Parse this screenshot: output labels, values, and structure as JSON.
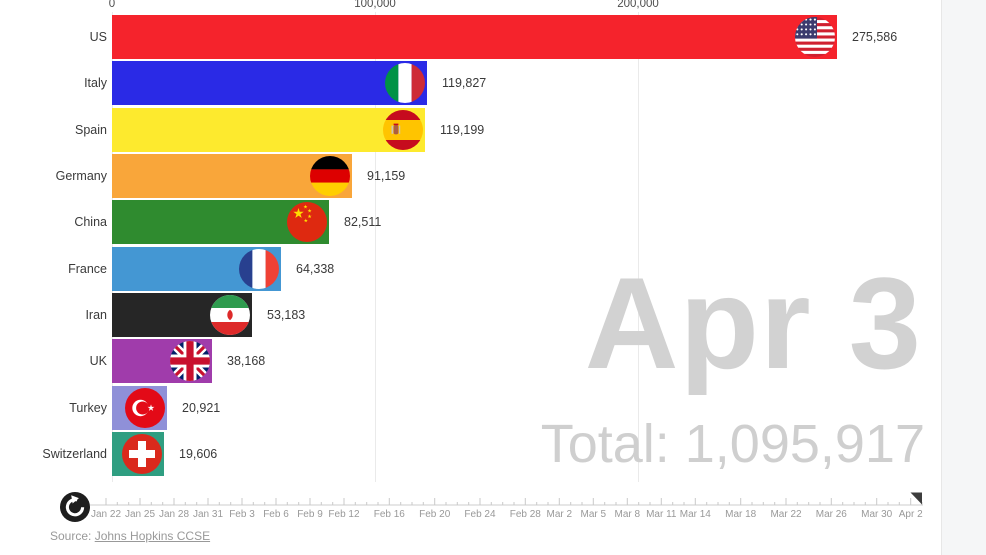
{
  "overlay": {
    "date": "Apr 3",
    "total_prefix": "Total: ",
    "total_value": "1,095,917"
  },
  "source": {
    "prefix": "Source: ",
    "link_text": "Johns Hopkins CCSE"
  },
  "controls": {
    "replay_icon": "replay-icon"
  },
  "chart_data": {
    "type": "bar",
    "orientation": "horizontal",
    "title": "",
    "date_label": "Apr 3",
    "total": 1095917,
    "grid": true,
    "xlim": [
      0,
      315000
    ],
    "x_axis_ticks": [
      {
        "label": "0",
        "value": 0
      },
      {
        "label": "100,000",
        "value": 100000
      },
      {
        "label": "200,000",
        "value": 200000
      }
    ],
    "categories": [
      "US",
      "Italy",
      "Spain",
      "Germany",
      "China",
      "France",
      "Iran",
      "UK",
      "Turkey",
      "Switzerland"
    ],
    "values": [
      275586,
      119827,
      119199,
      91159,
      82511,
      64338,
      53183,
      38168,
      20921,
      19606
    ],
    "value_labels": [
      "275,586",
      "119,827",
      "119,199",
      "91,159",
      "82,511",
      "64,338",
      "53,183",
      "38,168",
      "20,921",
      "19,606"
    ],
    "bar_colors": [
      "#f5232c",
      "#2a2ae6",
      "#fdea2e",
      "#f9a63a",
      "#2f8b2f",
      "#4497d3",
      "#262626",
      "#a03cab",
      "#8f90d8",
      "#2f9e81"
    ],
    "flags": [
      "us-flag",
      "italy-flag",
      "spain-flag",
      "germany-flag",
      "china-flag",
      "france-flag",
      "iran-flag",
      "uk-flag",
      "turkey-flag",
      "switzerland-flag"
    ]
  },
  "timeline": {
    "total_days": 72,
    "handle_day": 72,
    "labels": [
      {
        "text": "Jan 22",
        "day": 0
      },
      {
        "text": "Jan 25",
        "day": 3
      },
      {
        "text": "Jan 28",
        "day": 6
      },
      {
        "text": "Jan 31",
        "day": 9
      },
      {
        "text": "Feb 3",
        "day": 12
      },
      {
        "text": "Feb 6",
        "day": 15
      },
      {
        "text": "Feb 9",
        "day": 18
      },
      {
        "text": "Feb 12",
        "day": 21
      },
      {
        "text": "Feb 16",
        "day": 25
      },
      {
        "text": "Feb 20",
        "day": 29
      },
      {
        "text": "Feb 24",
        "day": 33
      },
      {
        "text": "Feb 28",
        "day": 37
      },
      {
        "text": "Mar 2",
        "day": 40
      },
      {
        "text": "Mar 5",
        "day": 43
      },
      {
        "text": "Mar 8",
        "day": 46
      },
      {
        "text": "Mar 11",
        "day": 49
      },
      {
        "text": "Mar 14",
        "day": 52
      },
      {
        "text": "Mar 18",
        "day": 56
      },
      {
        "text": "Mar 22",
        "day": 60
      },
      {
        "text": "Mar 26",
        "day": 64
      },
      {
        "text": "Mar 30",
        "day": 68
      },
      {
        "text": "Apr 2",
        "day": 71
      }
    ]
  }
}
